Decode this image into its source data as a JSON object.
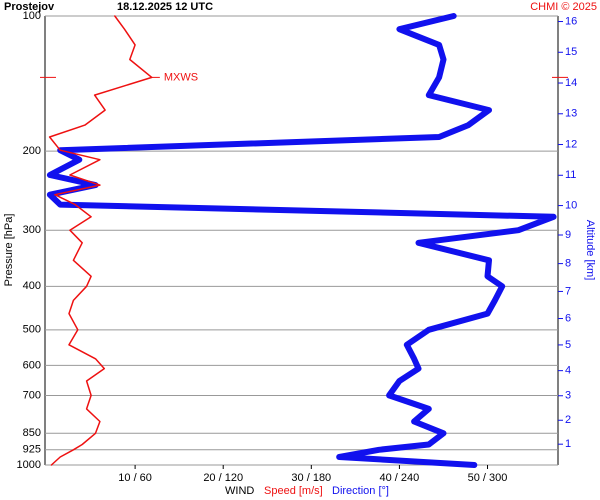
{
  "chart_data": {
    "type": "line",
    "title": "Prostejov",
    "subtitle": "18.12.2025 12 UTC",
    "credit": "CHMI © 2025",
    "ylabel": "Pressure [hPa]",
    "y2label": "Altitude [km]",
    "xlabel": "WIND",
    "ylog": true,
    "grid": true,
    "ylim": [
      100,
      1000
    ],
    "yticks": [
      100,
      200,
      300,
      400,
      500,
      600,
      700,
      850,
      925,
      1000
    ],
    "y2ticks": [
      1,
      2,
      3,
      4,
      5,
      6,
      7,
      8,
      9,
      10,
      11,
      12,
      13,
      14,
      15,
      16
    ],
    "xlim": [
      0,
      58
    ],
    "x2lim": [
      0,
      348
    ],
    "xticks": [
      {
        "value": 10,
        "label": "10 / 60"
      },
      {
        "value": 20,
        "label": "20 / 120"
      },
      {
        "value": 30,
        "label": "30 / 180"
      },
      {
        "value": 40,
        "label": "40 / 240"
      },
      {
        "value": 50,
        "label": "50 / 300"
      }
    ],
    "pressure": [
      100,
      107,
      116,
      125,
      137,
      150,
      162,
      175,
      186,
      199,
      209,
      226,
      238,
      250,
      263,
      280,
      300,
      320,
      350,
      380,
      400,
      430,
      460,
      500,
      540,
      580,
      610,
      650,
      700,
      750,
      800,
      850,
      900,
      925,
      960,
      1000
    ],
    "series": [
      {
        "name": "Speed [m/s]",
        "color": "#ee1111",
        "axis": "x",
        "values": [
          7.7,
          8.8,
          10,
          9.4,
          11.9,
          5.4,
          6.6,
          4.3,
          0.3,
          1.5,
          6,
          2.6,
          6,
          0.9,
          3.2,
          5,
          2.6,
          4,
          3,
          5,
          4.5,
          3,
          2.5,
          3.5,
          2.5,
          5.5,
          6.5,
          4.5,
          5,
          4.5,
          6,
          5.5,
          4,
          3,
          1.5,
          0.5
        ]
      },
      {
        "name": "Direction [°]",
        "color": "#1111ee",
        "axis": "x2",
        "values": [
          277,
          240,
          267,
          270,
          267,
          260,
          301,
          287,
          267,
          9,
          22,
          2,
          33,
          2,
          9,
          345,
          321,
          253,
          301,
          300,
          310,
          305,
          300,
          260,
          245,
          250,
          253,
          240,
          233,
          260,
          250,
          270,
          260,
          226,
          199,
          291
        ]
      }
    ],
    "annotation": {
      "label": "MXWS",
      "pressure": 137,
      "speed": 11.9
    }
  }
}
